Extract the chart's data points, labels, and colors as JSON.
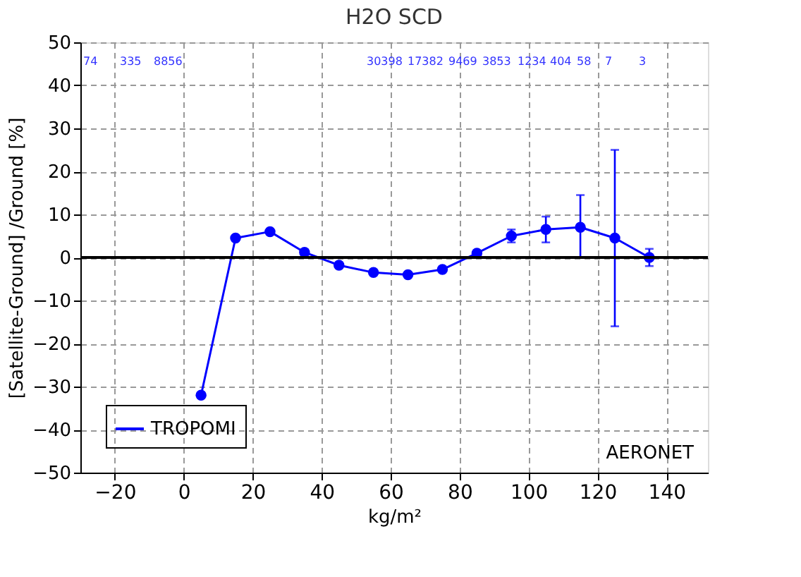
{
  "chart_data": {
    "type": "line",
    "title": "H2O SCD",
    "xlabel": "kg/m²",
    "ylabel": "[Satellite-Ground] /Ground   [%]",
    "series": [
      {
        "name": "TROPOMI",
        "color": "#0000ff",
        "x": [
          5,
          15,
          25,
          35,
          45,
          55,
          65,
          75,
          85,
          95,
          105,
          115,
          125,
          135
        ],
        "values": [
          -32,
          4.5,
          6,
          1.2,
          -1.8,
          -3.5,
          -4,
          -2.8,
          1,
          5,
          6.5,
          7,
          4.5,
          0
        ],
        "errors": [
          null,
          null,
          null,
          null,
          null,
          null,
          null,
          null,
          null,
          1.5,
          3,
          [
            0,
            14.5
          ],
          [
            -16,
            25
          ],
          2
        ]
      }
    ],
    "xlim": [
      -30,
      152
    ],
    "ylim": [
      -50,
      50
    ],
    "xticks": [
      -20,
      0,
      20,
      40,
      60,
      80,
      100,
      120,
      140
    ],
    "yticks": [
      -50,
      -40,
      -30,
      -20,
      -10,
      0,
      10,
      20,
      30,
      40,
      50
    ],
    "grid": true,
    "legend": "bottom left",
    "marker": "circle",
    "line_style": "solid",
    "ref_lines": [
      {
        "axis": "y",
        "value": 0,
        "color": "#000000"
      }
    ],
    "annotations": [
      "74",
      "335",
      "8856",
      "30398",
      "17382",
      "9469",
      "3853",
      "1234",
      "404",
      "58",
      "7",
      "3",
      "AERONET"
    ]
  }
}
